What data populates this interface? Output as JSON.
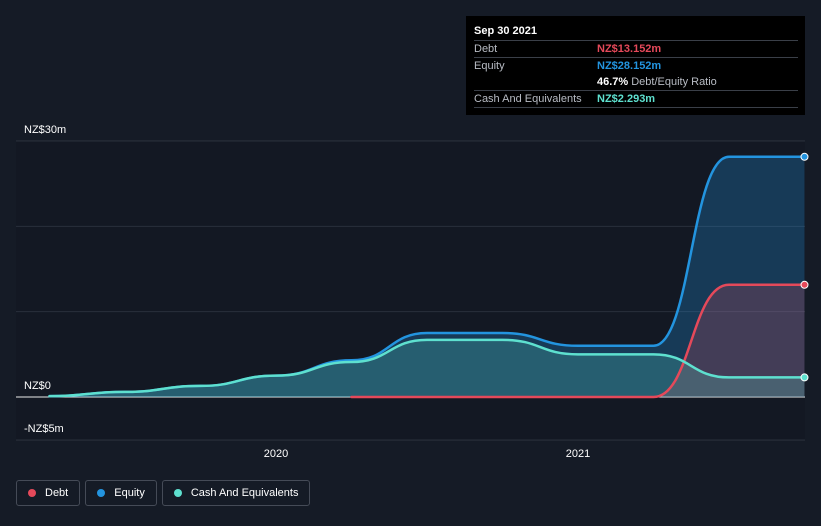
{
  "tooltip": {
    "date": "Sep 30 2021",
    "debt_label": "Debt",
    "debt_value": "NZ$13.152m",
    "equity_label": "Equity",
    "equity_value": "NZ$28.152m",
    "ratio_value": "46.7%",
    "ratio_label": "Debt/Equity Ratio",
    "cash_label": "Cash And Equivalents",
    "cash_value": "NZ$2.293m"
  },
  "legend": [
    {
      "label": "Debt",
      "color": "#e5495a"
    },
    {
      "label": "Equity",
      "color": "#2394df"
    },
    {
      "label": "Cash And Equivalents",
      "color": "#5ee0cf"
    }
  ],
  "chart_data": {
    "type": "area",
    "y_tick_labels": [
      "NZ$30m",
      "NZ$0",
      "-NZ$5m"
    ],
    "x_tick_labels": [
      "2020",
      "2021"
    ],
    "x_ticks": [
      2020.0,
      2021.0
    ],
    "ylim": [
      -5,
      30
    ],
    "xlim": [
      2019.1,
      2021.75
    ],
    "y_unit": "NZ$ millions",
    "grid": true,
    "legend_position": "bottom-left",
    "series": [
      {
        "name": "Debt",
        "color": "#e5495a",
        "x": [
          2020.25,
          2020.5,
          2020.75,
          2021.0,
          2021.25,
          2021.5,
          2021.75
        ],
        "y": [
          0,
          0,
          0,
          0,
          0,
          13.152,
          13.152
        ]
      },
      {
        "name": "Equity",
        "color": "#2394df",
        "x": [
          2019.25,
          2019.5,
          2019.75,
          2020.0,
          2020.25,
          2020.5,
          2020.75,
          2021.0,
          2021.25,
          2021.5,
          2021.75
        ],
        "y": [
          0.1,
          0.6,
          1.3,
          2.5,
          4.3,
          7.5,
          7.5,
          6.0,
          6.0,
          28.152,
          28.152
        ]
      },
      {
        "name": "Cash And Equivalents",
        "color": "#5ee0cf",
        "x": [
          2019.25,
          2019.5,
          2019.75,
          2020.0,
          2020.25,
          2020.5,
          2020.75,
          2021.0,
          2021.25,
          2021.5,
          2021.75
        ],
        "y": [
          0.1,
          0.6,
          1.3,
          2.5,
          4.1,
          6.7,
          6.7,
          5.0,
          5.0,
          2.293,
          2.293
        ]
      }
    ]
  }
}
